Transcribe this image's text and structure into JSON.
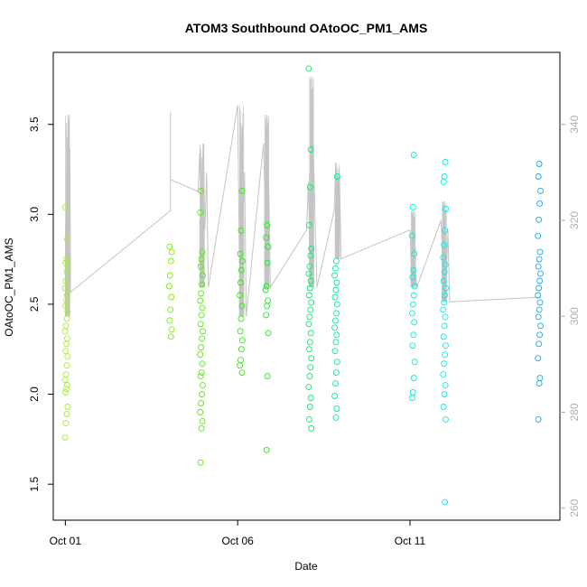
{
  "chart_data": {
    "type": "scatter",
    "title": "ATOM3 Southbound OAtoOC_PM1_AMS",
    "xlabel": "Date",
    "ylabel": "OAtoOC_PM1_AMS",
    "x_range_days": [
      -0.35,
      14.35
    ],
    "ylim": [
      1.3,
      3.9
    ],
    "y2lim": [
      257.5,
      355
    ],
    "x_ticks": [
      {
        "day": 0,
        "label": "Oct 01"
      },
      {
        "day": 5,
        "label": "Oct 06"
      },
      {
        "day": 10,
        "label": "Oct 11"
      }
    ],
    "y_ticks": [
      {
        "value": 1.5,
        "label": "1.5"
      },
      {
        "value": 2.0,
        "label": "2.0"
      },
      {
        "value": 2.5,
        "label": "2.5"
      },
      {
        "value": 3.0,
        "label": "3.0"
      },
      {
        "value": 3.5,
        "label": "3.5"
      }
    ],
    "y2_ticks": [
      {
        "value": 260,
        "label": "260"
      },
      {
        "value": 280,
        "label": "280"
      },
      {
        "value": 300,
        "label": "300"
      },
      {
        "value": 320,
        "label": "320"
      },
      {
        "value": 340,
        "label": "340"
      }
    ],
    "clusters": [
      {
        "day": 0.03,
        "color": "#a6f024",
        "values": [
          1.76,
          1.84,
          1.89,
          1.93,
          2.01,
          2.03,
          2.05,
          2.08,
          2.11,
          2.16,
          2.21,
          2.24,
          2.28,
          2.31,
          2.35,
          2.38,
          2.42,
          2.46,
          2.49,
          2.52,
          2.55,
          2.59,
          2.63,
          2.68,
          2.71,
          2.73,
          2.75,
          2.86,
          3.04
        ]
      },
      {
        "day": 3.05,
        "color": "#7cf000",
        "values": [
          2.32,
          2.36,
          2.41,
          2.47,
          2.54,
          2.6,
          2.66,
          2.74,
          2.79,
          2.82
        ]
      },
      {
        "day": 3.95,
        "color": "#50f000",
        "values": [
          1.62,
          1.81,
          1.85,
          1.9,
          1.95,
          2.0,
          2.05,
          2.1,
          2.12,
          2.17,
          2.22,
          2.26,
          2.31,
          2.35,
          2.39,
          2.44,
          2.48,
          2.52,
          2.56,
          2.61,
          2.66,
          2.71,
          2.75,
          2.79,
          3.01,
          3.13
        ]
      },
      {
        "day": 5.1,
        "color": "#2cf000",
        "values": [
          2.12,
          2.16,
          2.19,
          2.25,
          2.3,
          2.35,
          2.42,
          2.49,
          2.55,
          2.62,
          2.69,
          2.74,
          2.78,
          2.91,
          3.13
        ]
      },
      {
        "day": 5.85,
        "color": "#10f020",
        "values": [
          1.69,
          2.1,
          2.34,
          2.44,
          2.49,
          2.52,
          2.58,
          2.6,
          2.73,
          2.82,
          2.87,
          2.94
        ]
      },
      {
        "day": 7.1,
        "color": "#00f06a",
        "values": [
          1.81,
          1.86,
          1.93,
          1.98,
          2.04,
          2.1,
          2.15,
          2.2,
          2.25,
          2.29,
          2.34,
          2.39,
          2.43,
          2.47,
          2.51,
          2.55,
          2.59,
          2.63,
          2.67,
          2.71,
          2.77,
          2.81,
          2.94,
          3.15,
          3.36,
          3.81
        ]
      },
      {
        "day": 7.85,
        "color": "#00f098",
        "values": [
          1.87,
          1.92,
          1.99,
          2.06,
          2.12,
          2.18,
          2.24,
          2.29,
          2.33,
          2.37,
          2.41,
          2.45,
          2.5,
          2.54,
          2.58,
          2.62,
          2.66,
          2.7,
          2.74,
          3.21
        ]
      },
      {
        "day": 10.1,
        "color": "#00f0d8",
        "values": [
          1.98,
          2.01,
          2.09,
          2.18,
          2.27,
          2.33,
          2.4,
          2.45,
          2.5,
          2.55,
          2.6,
          2.65,
          2.69,
          2.78,
          2.88,
          3.04,
          3.33
        ]
      },
      {
        "day": 11.0,
        "color": "#00f0f0",
        "values": [
          1.4,
          1.86,
          1.93,
          2.0,
          2.05,
          2.11,
          2.17,
          2.22,
          2.27,
          2.32,
          2.38,
          2.43,
          2.47,
          2.51,
          2.55,
          2.59,
          2.63,
          2.68,
          2.72,
          2.76,
          2.83,
          2.91,
          3.03,
          3.18,
          3.21,
          3.29
        ]
      },
      {
        "day": 13.75,
        "color": "#18a8f0",
        "values": [
          1.86,
          2.06,
          2.09,
          2.2,
          2.28,
          2.33,
          2.38,
          2.43,
          2.47,
          2.51,
          2.55,
          2.59,
          2.63,
          2.67,
          2.71,
          2.75,
          2.79,
          2.88,
          2.97,
          3.06,
          3.13,
          3.21,
          3.28
        ]
      }
    ],
    "series2": {
      "name": "",
      "color": "#c4c4c4",
      "path": [
        [
          0.0,
          300
        ],
        [
          0.05,
          318
        ],
        [
          0.08,
          342
        ],
        [
          0.1,
          315
        ],
        [
          0.13,
          335
        ],
        [
          0.15,
          305
        ],
        [
          3.05,
          322
        ],
        [
          3.05,
          342.5
        ],
        [
          3.05,
          328.5
        ],
        [
          3.85,
          326
        ],
        [
          3.9,
          334
        ],
        [
          3.95,
          322
        ],
        [
          4.0,
          336
        ],
        [
          4.05,
          318
        ],
        [
          4.1,
          330
        ],
        [
          4.15,
          306
        ],
        [
          5.0,
          344
        ],
        [
          5.05,
          312
        ],
        [
          5.1,
          338
        ],
        [
          5.15,
          318
        ],
        [
          5.2,
          330
        ],
        [
          5.25,
          300
        ],
        [
          5.75,
          336
        ],
        [
          5.8,
          322
        ],
        [
          5.85,
          342
        ],
        [
          5.9,
          328
        ],
        [
          5.95,
          306
        ],
        [
          7.0,
          318
        ],
        [
          7.05,
          328
        ],
        [
          7.1,
          312
        ],
        [
          7.15,
          350
        ],
        [
          7.2,
          334
        ],
        [
          7.25,
          320
        ],
        [
          7.3,
          306
        ],
        [
          7.8,
          322
        ],
        [
          7.85,
          332
        ],
        [
          7.9,
          318
        ],
        [
          7.95,
          330
        ],
        [
          8.0,
          312
        ],
        [
          10.0,
          318
        ],
        [
          10.05,
          308
        ],
        [
          10.1,
          322
        ],
        [
          10.15,
          310
        ],
        [
          10.2,
          306
        ],
        [
          10.9,
          320
        ],
        [
          10.95,
          312
        ],
        [
          11.0,
          324
        ],
        [
          11.05,
          308
        ],
        [
          11.1,
          318
        ],
        [
          11.15,
          303
        ],
        [
          13.8,
          304
        ]
      ],
      "spikes": [
        {
          "day": 0.07,
          "low": 300,
          "high": 342
        },
        {
          "day": 3.97,
          "low": 306,
          "high": 336
        },
        {
          "day": 5.12,
          "low": 300,
          "high": 344
        },
        {
          "day": 5.85,
          "low": 306,
          "high": 342
        },
        {
          "day": 7.15,
          "low": 306,
          "high": 350
        },
        {
          "day": 7.9,
          "low": 312,
          "high": 332
        },
        {
          "day": 10.1,
          "low": 306,
          "high": 322
        },
        {
          "day": 11.0,
          "low": 303,
          "high": 324
        }
      ]
    }
  }
}
